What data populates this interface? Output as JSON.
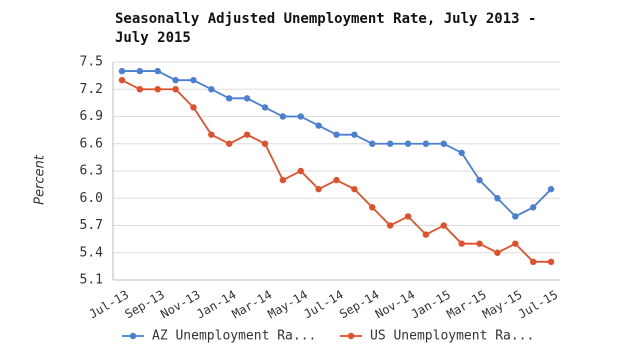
{
  "chart_data": {
    "type": "line",
    "title": "Seasonally Adjusted Unemployment Rate, July 2013 - July 2015",
    "y_label": "Percent",
    "categories": [
      "Jul-13",
      null,
      "Sep-13",
      null,
      "Nov-13",
      null,
      "Jan-14",
      null,
      "Mar-14",
      null,
      "May-14",
      null,
      "Jul-14",
      null,
      "Sep-14",
      null,
      "Nov-14",
      null,
      "Jan-15",
      null,
      "Mar-15",
      null,
      "May-15",
      null,
      "Jul-15"
    ],
    "series": [
      {
        "name": "AZ Unemployment Ra...",
        "color": "#4a7fd4",
        "values": [
          7.4,
          7.4,
          7.4,
          7.3,
          7.3,
          7.2,
          7.1,
          7.1,
          7.0,
          6.9,
          6.9,
          6.8,
          6.7,
          6.7,
          6.6,
          6.6,
          6.6,
          6.6,
          6.6,
          6.5,
          6.2,
          6.0,
          5.8,
          5.9,
          6.1
        ]
      },
      {
        "name": "US Unemployment Ra...",
        "color": "#e0502a",
        "values": [
          7.3,
          7.2,
          7.2,
          7.2,
          7.0,
          6.7,
          6.6,
          6.7,
          6.6,
          6.2,
          6.3,
          6.1,
          6.2,
          6.1,
          5.9,
          5.7,
          5.8,
          5.6,
          5.7,
          5.5,
          5.5,
          5.4,
          5.5,
          5.3,
          5.3
        ]
      }
    ],
    "ylim": [
      5.1,
      7.5
    ],
    "yticks": [
      5.1,
      5.4,
      5.7,
      {
        "value": 6,
        "label": "6.0"
      },
      6.3,
      6.6,
      6.9,
      7.2,
      7.5
    ],
    "grid": true
  }
}
